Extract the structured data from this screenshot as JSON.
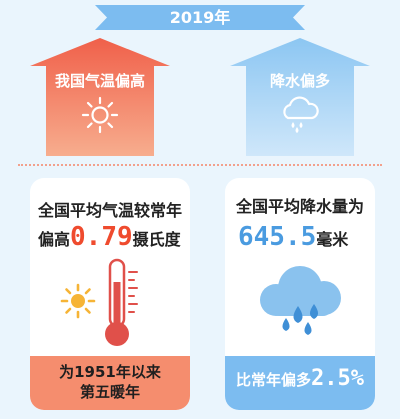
{
  "header": {
    "year_label": "2019年"
  },
  "left_house": {
    "label": "我国气温偏高",
    "icon": "sun-icon"
  },
  "right_house": {
    "label": "降水偏多",
    "icon": "rain-cloud-icon"
  },
  "left_card": {
    "line1": "全国平均气温较常年",
    "line2_prefix": "偏高",
    "line2_value": "0.79",
    "line2_suffix": "摄氏度",
    "footer_line1": "为1951年以来",
    "footer_line2": "第五暖年"
  },
  "right_card": {
    "line1": "全国平均降水量为",
    "value": "645.5",
    "unit": "毫米",
    "footer_prefix": "比常年偏多",
    "footer_value": "2.5%"
  },
  "colors": {
    "red": "#ef4b2e",
    "blue": "#4a9be0",
    "banner": "#7cbcf0"
  }
}
